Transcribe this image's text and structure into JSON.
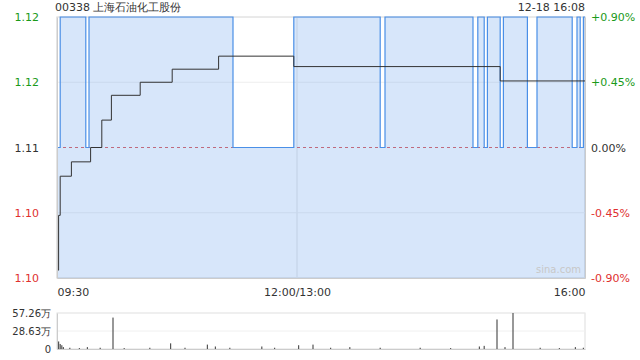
{
  "chart_data": [
    {
      "type": "line",
      "title": "00338 上海石油化工股份",
      "subtitle": "12-18 16:08",
      "watermark": "sina.com",
      "xlim": [
        0,
        330
      ],
      "xticks": [
        {
          "value": 0,
          "label": "09:30"
        },
        {
          "value": 150,
          "label": "12:00/13:00"
        },
        {
          "value": 330,
          "label": "16:00"
        }
      ],
      "ylim": [
        1.1,
        1.12
      ],
      "yticks": [
        {
          "value": 1.12,
          "label": "1.12"
        },
        {
          "value": 1.115,
          "label": "1.12"
        },
        {
          "value": 1.11,
          "label": "1.11"
        },
        {
          "value": 1.105,
          "label": "1.10"
        },
        {
          "value": 1.1,
          "label": "1.10"
        }
      ],
      "y2lim": [
        -0.9,
        0.9
      ],
      "y2ticks": [
        {
          "value": 0.9,
          "label": "+0.90%"
        },
        {
          "value": 0.45,
          "label": "+0.45%"
        },
        {
          "value": 0,
          "label": "0.00%"
        },
        {
          "value": -0.45,
          "label": "-0.45%"
        },
        {
          "value": -0.9,
          "label": "-0.90%"
        }
      ],
      "grid": true,
      "series": [
        {
          "type": "area",
          "color": "#4a8fe7",
          "line_style": "step",
          "x": [
            0,
            2,
            18,
            20,
            110,
            148,
            202,
            205,
            260,
            263,
            267,
            269,
            277,
            279,
            294,
            300,
            322,
            325,
            327,
            329,
            330
          ],
          "values": [
            1.11,
            1.12,
            1.11,
            1.12,
            1.11,
            1.12,
            1.11,
            1.12,
            1.11,
            1.12,
            1.11,
            1.12,
            1.11,
            1.12,
            1.11,
            1.12,
            1.11,
            1.12,
            1.11,
            1.12,
            1.12
          ]
        },
        {
          "type": "line",
          "color": "#333333",
          "line_style": "step",
          "x": [
            0,
            1,
            2,
            9,
            21,
            28,
            34,
            52,
            72,
            101,
            148,
            277,
            330
          ],
          "values": [
            1.1006,
            1.1048,
            1.1078,
            1.1089,
            1.11,
            1.1121,
            1.114,
            1.115,
            1.116,
            1.117,
            1.1162,
            1.1151,
            1.1151
          ]
        }
      ]
    },
    {
      "type": "bar",
      "color": "#555555",
      "tick_labels": "y",
      "xlim": [
        0,
        330
      ],
      "ylim": [
        0,
        57.26
      ],
      "yticks": [
        {
          "value": 57.26,
          "label": "57.26万"
        },
        {
          "value": 28.63,
          "label": "28.63万"
        },
        0
      ],
      "x": [
        1,
        2,
        3,
        4,
        8,
        14,
        19,
        27,
        35,
        42,
        58,
        71,
        80,
        94,
        99,
        108,
        128,
        136,
        151,
        160,
        171,
        183,
        202,
        227,
        246,
        264,
        267,
        275,
        280,
        285,
        302,
        314,
        324,
        329
      ],
      "values": [
        12,
        8,
        6,
        3,
        2,
        1.5,
        3,
        2,
        50,
        1.5,
        2,
        9,
        2,
        7,
        4,
        2,
        4,
        2,
        6,
        7,
        2,
        3,
        2,
        2,
        1.5,
        4,
        5,
        47,
        3,
        57.26,
        2,
        1.5,
        3,
        2
      ]
    }
  ]
}
